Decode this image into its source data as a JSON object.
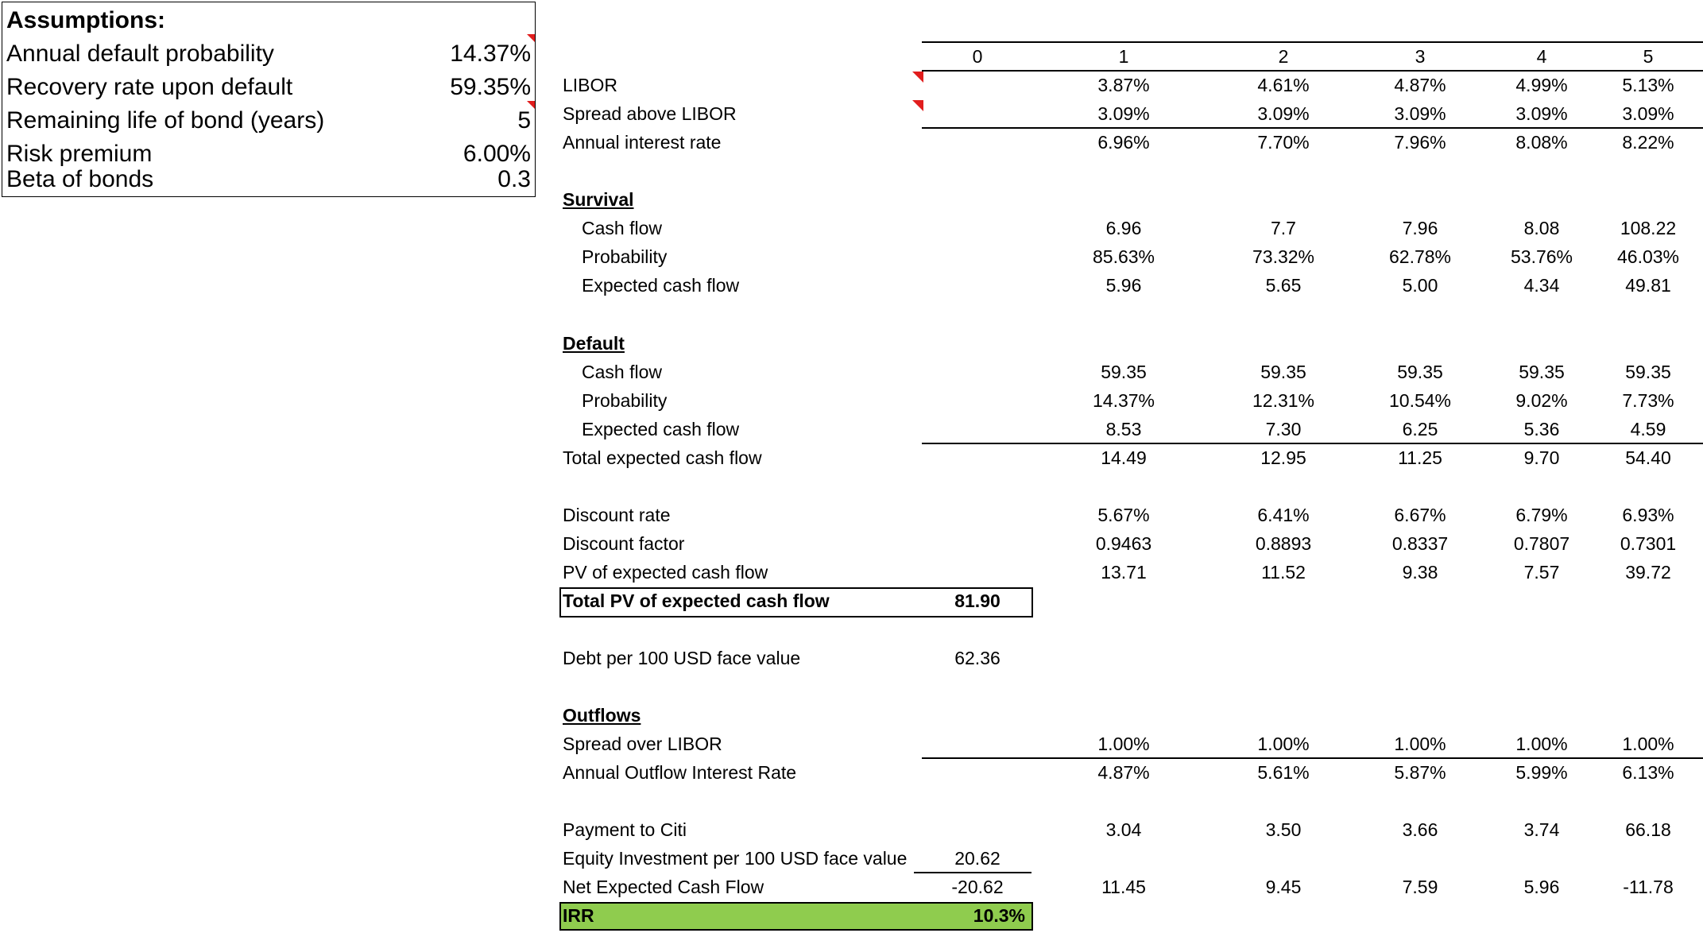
{
  "assumptions": {
    "title": "Assumptions:",
    "rows": [
      {
        "label": "Annual default probability",
        "value": "14.37%"
      },
      {
        "label": "Recovery rate upon default",
        "value": "59.35%"
      },
      {
        "label": "Remaining life of bond (years)",
        "value": "5"
      },
      {
        "label": "Risk premium",
        "value": "6.00%"
      },
      {
        "label": "Beta of bonds",
        "value": "0.3"
      }
    ]
  },
  "columns": [
    "0",
    "1",
    "2",
    "3",
    "4",
    "5"
  ],
  "rows": {
    "libor": {
      "label": "LIBOR",
      "values": [
        "",
        "3.87%",
        "4.61%",
        "4.87%",
        "4.99%",
        "5.13%"
      ]
    },
    "spread": {
      "label": "Spread above LIBOR",
      "values": [
        "",
        "3.09%",
        "3.09%",
        "3.09%",
        "3.09%",
        "3.09%"
      ]
    },
    "annual_rate": {
      "label": "Annual interest rate",
      "values": [
        "",
        "6.96%",
        "7.70%",
        "7.96%",
        "8.08%",
        "8.22%"
      ]
    },
    "survival_head": {
      "label": "Survival"
    },
    "surv_cf": {
      "label": "Cash flow",
      "values": [
        "",
        "6.96",
        "7.7",
        "7.96",
        "8.08",
        "108.22"
      ]
    },
    "surv_prob": {
      "label": "Probability",
      "values": [
        "",
        "85.63%",
        "73.32%",
        "62.78%",
        "53.76%",
        "46.03%"
      ]
    },
    "surv_ecf": {
      "label": "Expected cash flow",
      "values": [
        "",
        "5.96",
        "5.65",
        "5.00",
        "4.34",
        "49.81"
      ]
    },
    "default_head": {
      "label": "Default"
    },
    "def_cf": {
      "label": "Cash flow",
      "values": [
        "",
        "59.35",
        "59.35",
        "59.35",
        "59.35",
        "59.35"
      ]
    },
    "def_prob": {
      "label": "Probability",
      "values": [
        "",
        "14.37%",
        "12.31%",
        "10.54%",
        "9.02%",
        "7.73%"
      ]
    },
    "def_ecf": {
      "label": "Expected cash flow",
      "values": [
        "",
        "8.53",
        "7.30",
        "6.25",
        "5.36",
        "4.59"
      ]
    },
    "total_ecf": {
      "label": "Total expected cash flow",
      "values": [
        "",
        "14.49",
        "12.95",
        "11.25",
        "9.70",
        "54.40"
      ]
    },
    "disc_rate": {
      "label": "Discount rate",
      "values": [
        "",
        "5.67%",
        "6.41%",
        "6.67%",
        "6.79%",
        "6.93%"
      ]
    },
    "disc_factor": {
      "label": "Discount factor",
      "values": [
        "",
        "0.9463",
        "0.8893",
        "0.8337",
        "0.7807",
        "0.7301"
      ]
    },
    "pv_ecf": {
      "label": "PV of expected cash flow",
      "values": [
        "",
        "13.71",
        "11.52",
        "9.38",
        "7.57",
        "39.72"
      ]
    },
    "total_pv": {
      "label": "Total PV of expected cash flow",
      "values": [
        "81.90",
        "",
        "",
        "",
        "",
        ""
      ]
    },
    "debt": {
      "label": "Debt per 100 USD face value",
      "values": [
        "62.36",
        "",
        "",
        "",
        "",
        ""
      ]
    },
    "outflows_head": {
      "label": "Outflows"
    },
    "spread_over": {
      "label": "Spread over LIBOR",
      "values": [
        "",
        "1.00%",
        "1.00%",
        "1.00%",
        "1.00%",
        "1.00%"
      ]
    },
    "outflow_rate": {
      "label": "Annual Outflow Interest Rate",
      "values": [
        "",
        "4.87%",
        "5.61%",
        "5.87%",
        "5.99%",
        "6.13%"
      ]
    },
    "payment": {
      "label": "Payment to Citi",
      "values": [
        "",
        "3.04",
        "3.50",
        "3.66",
        "3.74",
        "66.18"
      ]
    },
    "equity": {
      "label": "Equity Investment per 100 USD face value",
      "values": [
        "20.62",
        "",
        "",
        "",
        "",
        ""
      ]
    },
    "net_ecf": {
      "label": "Net Expected Cash Flow",
      "values": [
        "-20.62",
        "11.45",
        "9.45",
        "7.59",
        "5.96",
        "-11.78"
      ]
    },
    "irr": {
      "label": "IRR",
      "value": "10.3%"
    }
  },
  "colors": {
    "irr_fill": "#8fcc4e",
    "comment_flag": "#e11d1d"
  }
}
